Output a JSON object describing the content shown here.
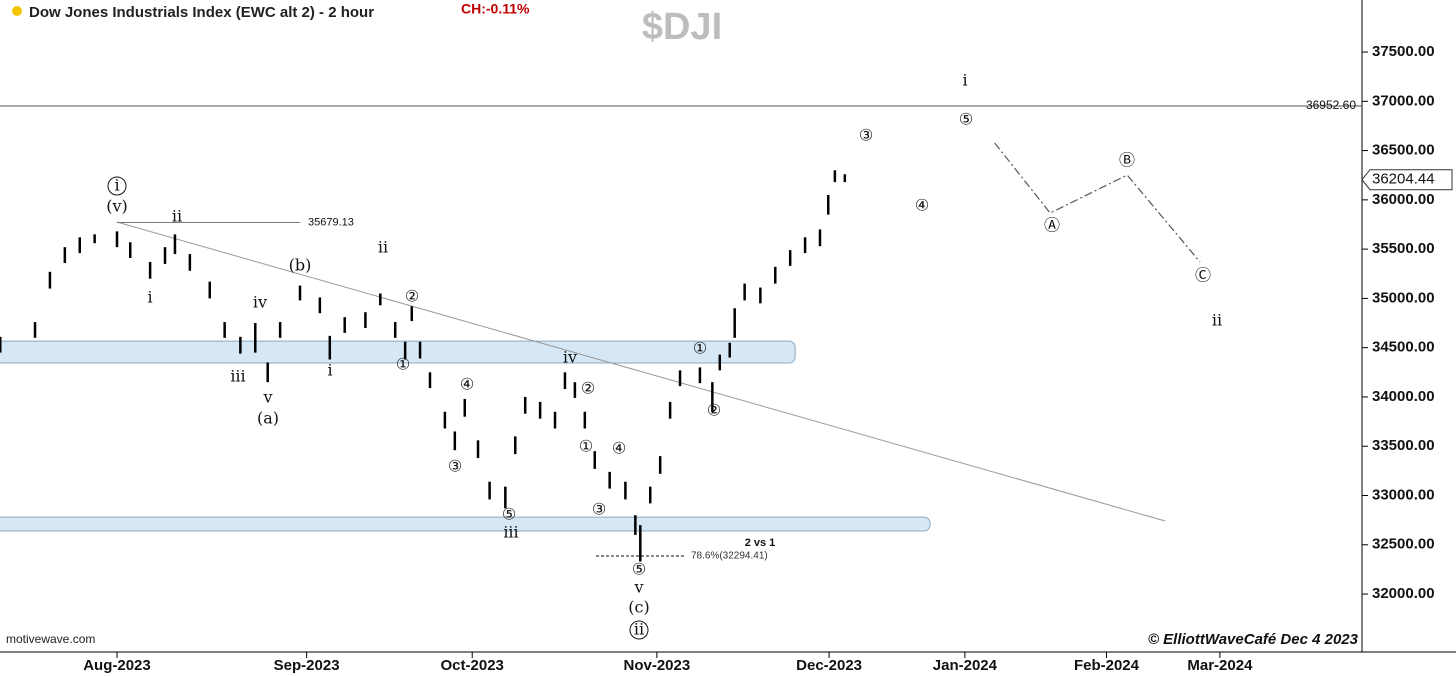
{
  "chart_data": {
    "type": "ohlc",
    "title": "Dow Jones Industrials Index (EWC alt 2) - 2 hour",
    "change": "CH:-0.11%",
    "symbol": "$DJI",
    "source": "motivewave.com",
    "credit": "© ElliottWaveCafé Dec 4 2023",
    "color": "#000000",
    "x": [
      -14.1,
      -9.9,
      -8.1,
      -6.3,
      -4.5,
      -2.7,
      0,
      1.6,
      4.0,
      5.8,
      7.0,
      8.8,
      11.2,
      13.0,
      14.9,
      16.7,
      18.2,
      19.7,
      22.1,
      24.5,
      25.7,
      27.5,
      30.0,
      31.8,
      33.6,
      34.8,
      35.6,
      36.6,
      37.8,
      39.6,
      40.8,
      42.0,
      43.6,
      45.0,
      46.9,
      48.1,
      49.3,
      51.1,
      52.9,
      54.1,
      55.3,
      56.5,
      57.7,
      59.5,
      61.4,
      62.6,
      63.2,
      64.4,
      65.6,
      66.8,
      68.0,
      70.4,
      71.9,
      72.8,
      74.0,
      74.6,
      75.8,
      77.7,
      79.5,
      81.3,
      83.1,
      84.9,
      85.9,
      86.7,
      87.9
    ],
    "high": [
      34610,
      34760,
      35270,
      35520,
      35620,
      35650,
      35680,
      35570,
      35370,
      35520,
      35650,
      35450,
      35170,
      34760,
      34610,
      34750,
      34350,
      34760,
      35130,
      35010,
      34620,
      34810,
      34860,
      35050,
      34760,
      34560,
      34920,
      34560,
      34250,
      33850,
      33650,
      33980,
      33560,
      33140,
      33090,
      33600,
      34000,
      33950,
      33850,
      34250,
      34150,
      33850,
      33450,
      33240,
      33140,
      32800,
      32700,
      33090,
      33400,
      33950,
      34270,
      34300,
      34150,
      34430,
      34550,
      34900,
      35150,
      35110,
      35320,
      35490,
      35620,
      35700,
      36050,
      36300,
      36260
    ],
    "low": [
      34450,
      34600,
      35100,
      35360,
      35460,
      35560,
      35520,
      35410,
      35200,
      35350,
      35450,
      35280,
      35000,
      34600,
      34440,
      34450,
      34150,
      34600,
      34980,
      34850,
      34380,
      34650,
      34700,
      34930,
      34600,
      34380,
      34770,
      34390,
      34090,
      33680,
      33460,
      33800,
      33380,
      32960,
      32870,
      33420,
      33830,
      33780,
      33680,
      34080,
      33990,
      33680,
      33270,
      33070,
      32960,
      32600,
      32330,
      32920,
      33220,
      33780,
      34110,
      34140,
      33850,
      34270,
      34400,
      34600,
      34980,
      34950,
      35150,
      35330,
      35460,
      35530,
      35850,
      36180,
      36180
    ],
    "last_price": {
      "value": 36204.44,
      "label": "36204.44"
    },
    "levels": [
      {
        "value": 36952.6,
        "label": "36952.60"
      },
      {
        "value": 35679.13,
        "label": "35679.13"
      },
      {
        "value": 32294.41,
        "label": "78.6%(32294.41)"
      }
    ],
    "zones": [
      {
        "from": 34344,
        "to": 34567,
        "x_end": 81.9
      },
      {
        "from": 32640,
        "to": 32781,
        "x_end": 98.2
      }
    ],
    "trendline": {
      "x": [
        0,
        126.6
      ],
      "y": [
        35775,
        32741
      ]
    },
    "projection": {
      "x": [
        106.0,
        112.7,
        122.0,
        130.8
      ],
      "y": [
        36577,
        35866,
        36252,
        35369
      ]
    },
    "note": "2 vs 1",
    "wave_labels": [
      "i",
      "(v)",
      "ii",
      "i",
      "iv",
      "iii",
      "v",
      "(a)",
      "(b)",
      "ii",
      "i",
      "②",
      "①",
      "iv",
      "④",
      "③",
      "⑤",
      "iii",
      "②",
      "①",
      "④",
      "③",
      "⑤",
      "v",
      "(c)",
      "ii",
      "①",
      "②",
      "③",
      "④",
      "⑤",
      "i",
      "Ⓐ",
      "Ⓑ",
      "Ⓒ",
      "ii"
    ],
    "xlim": [
      -14.13,
      150.36
    ],
    "ylim": [
      31412,
      38028
    ],
    "xticks": [
      {
        "value": 0,
        "label": "Aug-2023"
      },
      {
        "value": 22.9,
        "label": "Sep-2023"
      },
      {
        "value": 42.9,
        "label": "Oct-2023"
      },
      {
        "value": 65.2,
        "label": "Nov-2023"
      },
      {
        "value": 86.0,
        "label": "Dec-2023"
      },
      {
        "value": 102.4,
        "label": "Jan-2024"
      },
      {
        "value": 119.5,
        "label": "Feb-2024"
      },
      {
        "value": 133.2,
        "label": "Mar-2024"
      }
    ],
    "yticks": [
      {
        "value": 32000,
        "label": "32000.00"
      },
      {
        "value": 32500,
        "label": "32500.00"
      },
      {
        "value": 33000,
        "label": "33000.00"
      },
      {
        "value": 33500,
        "label": "33500.00"
      },
      {
        "value": 34000,
        "label": "34000.00"
      },
      {
        "value": 34500,
        "label": "34500.00"
      },
      {
        "value": 35000,
        "label": "35000.00"
      },
      {
        "value": 35500,
        "label": "35500.00"
      },
      {
        "value": 36000,
        "label": "36000.00"
      },
      {
        "value": 36500,
        "label": "36500.00"
      },
      {
        "value": 37000,
        "label": "37000.00"
      },
      {
        "value": 37500,
        "label": "37500.00"
      }
    ]
  }
}
